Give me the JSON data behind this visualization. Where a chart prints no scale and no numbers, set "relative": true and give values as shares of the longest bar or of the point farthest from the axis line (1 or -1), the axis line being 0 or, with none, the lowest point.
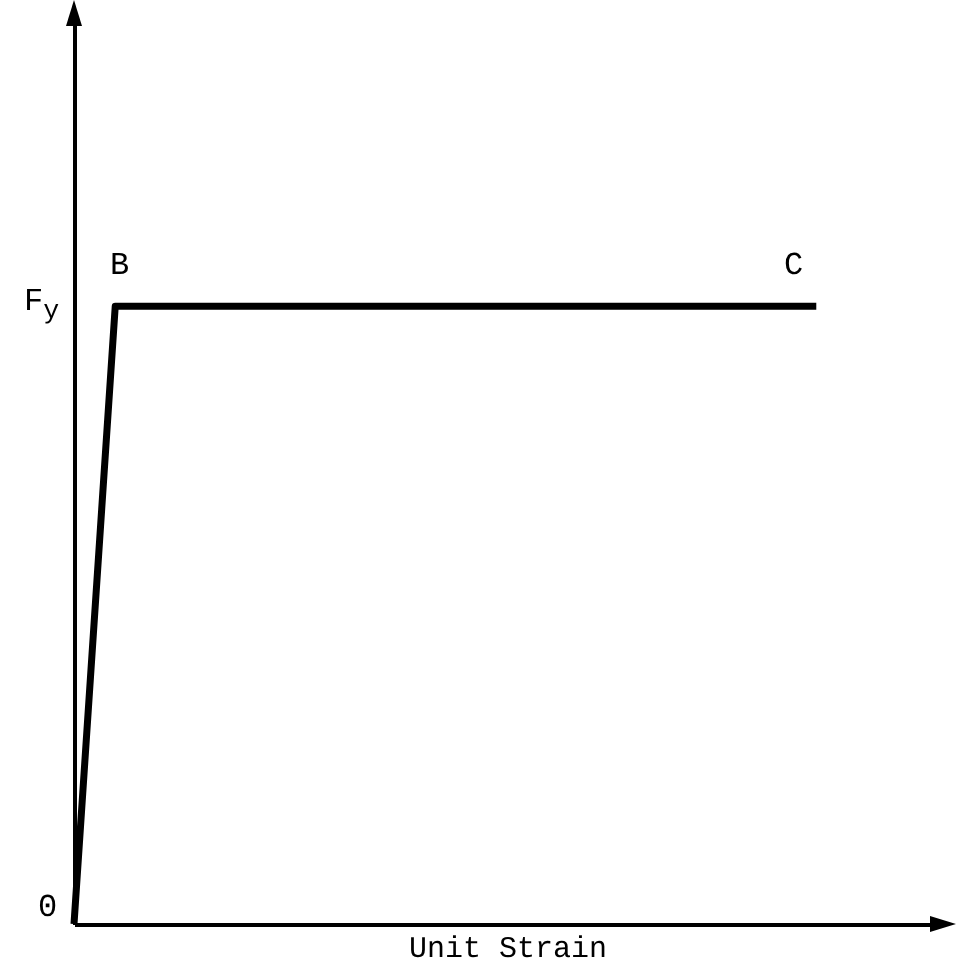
{
  "chart_data": {
    "type": "line",
    "xlabel": "Unit Strain",
    "relative": true,
    "categories": [
      null,
      null,
      null,
      null,
      null,
      null,
      null,
      null,
      null,
      null,
      null,
      null,
      null,
      null,
      null,
      null,
      null,
      null,
      null,
      null,
      null,
      null
    ],
    "series": [
      {
        "color": "#000000",
        "values": [
          0,
          1,
          1,
          1,
          1,
          1,
          1,
          1,
          1,
          1,
          1,
          1,
          1,
          1,
          1,
          1,
          1,
          1,
          1,
          null,
          null,
          null
        ]
      }
    ],
    "grid": false,
    "marker": "none",
    "line_style": "solid",
    "annotations": [
      "0",
      "F$_{y}$",
      "B",
      "C"
    ]
  }
}
